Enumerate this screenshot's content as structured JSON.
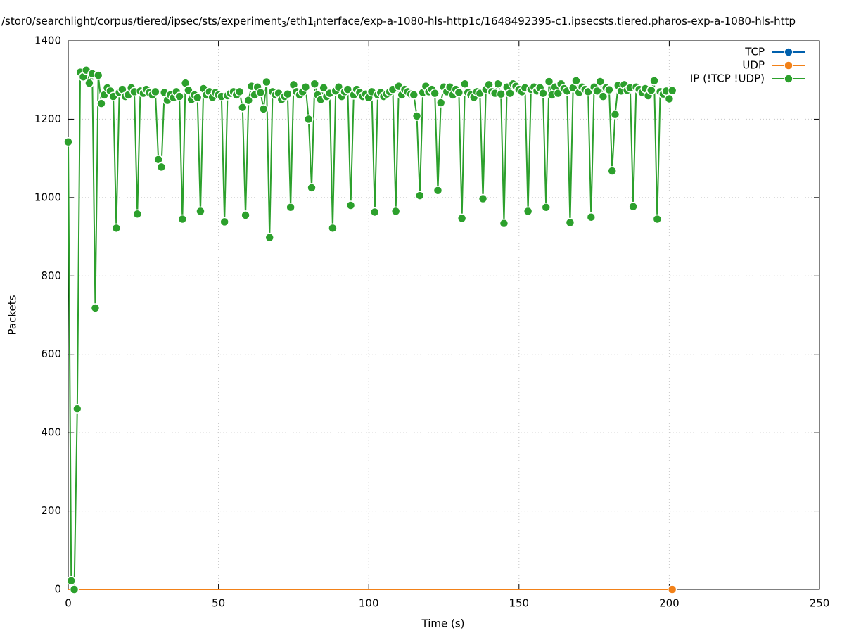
{
  "chart_data": {
    "type": "line",
    "title": [
      "/stor0/searchlight/corpus/tiered/ipsec/sts/experiment",
      "3",
      "/eth1",
      "i",
      "nterface/exp-a-1080-hls-http1c/1648492395-c1.ipsecsts.tiered.pharos-exp-a-1080-hls-http"
    ],
    "x_label": "Time (s)",
    "y_label": "Packets",
    "xlim": [
      0,
      250
    ],
    "xticks": [
      0,
      50,
      100,
      150,
      200,
      250
    ],
    "ylim": [
      0,
      1400
    ],
    "yticks": [
      0,
      200,
      400,
      600,
      800,
      1000,
      1200,
      1400
    ],
    "grid": true,
    "legend": "top-right",
    "x": [
      0,
      1,
      2,
      3,
      4,
      5,
      6,
      7,
      8,
      9,
      10,
      11,
      12,
      13,
      14,
      15,
      16,
      17,
      18,
      19,
      20,
      21,
      22,
      23,
      24,
      25,
      26,
      27,
      28,
      29,
      30,
      31,
      32,
      33,
      34,
      35,
      36,
      37,
      38,
      39,
      40,
      41,
      42,
      43,
      44,
      45,
      46,
      47,
      48,
      49,
      50,
      51,
      52,
      53,
      54,
      55,
      56,
      57,
      58,
      59,
      60,
      61,
      62,
      63,
      64,
      65,
      66,
      67,
      68,
      69,
      70,
      71,
      72,
      73,
      74,
      75,
      76,
      77,
      78,
      79,
      80,
      81,
      82,
      83,
      84,
      85,
      86,
      87,
      88,
      89,
      90,
      91,
      92,
      93,
      94,
      95,
      96,
      97,
      98,
      99,
      100,
      101,
      102,
      103,
      104,
      105,
      106,
      107,
      108,
      109,
      110,
      111,
      112,
      113,
      114,
      115,
      116,
      117,
      118,
      119,
      120,
      121,
      122,
      123,
      124,
      125,
      126,
      127,
      128,
      129,
      130,
      131,
      132,
      133,
      134,
      135,
      136,
      137,
      138,
      139,
      140,
      141,
      142,
      143,
      144,
      145,
      146,
      147,
      148,
      149,
      150,
      151,
      152,
      153,
      154,
      155,
      156,
      157,
      158,
      159,
      160,
      161,
      162,
      163,
      164,
      165,
      166,
      167,
      168,
      169,
      170,
      171,
      172,
      173,
      174,
      175,
      176,
      177,
      178,
      179,
      180,
      181,
      182,
      183,
      184,
      185,
      186,
      187,
      188,
      189,
      190,
      191,
      192,
      193,
      194,
      195,
      196,
      197,
      198,
      199,
      200,
      201
    ],
    "series": [
      {
        "name": "TCP",
        "color": "#0060ad",
        "values": [
          0,
          0,
          0,
          0,
          0,
          0,
          0,
          0,
          0,
          0,
          0,
          0,
          0,
          0,
          0,
          0,
          0,
          0,
          0,
          0,
          0,
          0,
          0,
          0,
          0,
          0,
          0,
          0,
          0,
          0,
          0,
          0,
          0,
          0,
          0,
          0,
          0,
          0,
          0,
          0,
          0,
          0,
          0,
          0,
          0,
          0,
          0,
          0,
          0,
          0,
          0,
          0,
          0,
          0,
          0,
          0,
          0,
          0,
          0,
          0,
          0,
          0,
          0,
          0,
          0,
          0,
          0,
          0,
          0,
          0,
          0,
          0,
          0,
          0,
          0,
          0,
          0,
          0,
          0,
          0,
          0,
          0,
          0,
          0,
          0,
          0,
          0,
          0,
          0,
          0,
          0,
          0,
          0,
          0,
          0,
          0,
          0,
          0,
          0,
          0,
          0,
          0,
          0,
          0,
          0,
          0,
          0,
          0,
          0,
          0,
          0,
          0,
          0,
          0,
          0,
          0,
          0,
          0,
          0,
          0,
          0,
          0,
          0,
          0,
          0,
          0,
          0,
          0,
          0,
          0,
          0,
          0,
          0,
          0,
          0,
          0,
          0,
          0,
          0,
          0,
          0,
          0,
          0,
          0,
          0,
          0,
          0,
          0,
          0,
          0,
          0,
          0,
          0,
          0,
          0,
          0,
          0,
          0,
          0,
          0,
          0,
          0,
          0,
          0,
          0,
          0,
          0,
          0,
          0,
          0,
          0,
          0,
          0,
          0,
          0,
          0,
          0,
          0,
          0,
          0,
          0,
          0,
          0,
          0,
          0,
          0,
          0,
          0,
          0,
          0,
          0,
          0,
          0,
          0,
          0,
          0,
          0,
          0,
          0,
          0,
          0,
          0
        ]
      },
      {
        "name": "UDP",
        "color": "#f28118",
        "values": [
          0,
          0,
          0,
          0,
          0,
          0,
          0,
          0,
          0,
          0,
          0,
          0,
          0,
          0,
          0,
          0,
          0,
          0,
          0,
          0,
          0,
          0,
          0,
          0,
          0,
          0,
          0,
          0,
          0,
          0,
          0,
          0,
          0,
          0,
          0,
          0,
          0,
          0,
          0,
          0,
          0,
          0,
          0,
          0,
          0,
          0,
          0,
          0,
          0,
          0,
          0,
          0,
          0,
          0,
          0,
          0,
          0,
          0,
          0,
          0,
          0,
          0,
          0,
          0,
          0,
          0,
          0,
          0,
          0,
          0,
          0,
          0,
          0,
          0,
          0,
          0,
          0,
          0,
          0,
          0,
          0,
          0,
          0,
          0,
          0,
          0,
          0,
          0,
          0,
          0,
          0,
          0,
          0,
          0,
          0,
          0,
          0,
          0,
          0,
          0,
          0,
          0,
          0,
          0,
          0,
          0,
          0,
          0,
          0,
          0,
          0,
          0,
          0,
          0,
          0,
          0,
          0,
          0,
          0,
          0,
          0,
          0,
          0,
          0,
          0,
          0,
          0,
          0,
          0,
          0,
          0,
          0,
          0,
          0,
          0,
          0,
          0,
          0,
          0,
          0,
          0,
          0,
          0,
          0,
          0,
          0,
          0,
          0,
          0,
          0,
          0,
          0,
          0,
          0,
          0,
          0,
          0,
          0,
          0,
          0,
          0,
          0,
          0,
          0,
          0,
          0,
          0,
          0,
          0,
          0,
          0,
          0,
          0,
          0,
          0,
          0,
          0,
          0,
          0,
          0,
          0,
          0,
          0,
          0,
          0,
          0,
          0,
          0,
          0,
          0,
          0,
          0,
          0,
          0,
          0,
          0,
          0,
          0,
          0,
          0,
          0,
          0
        ]
      },
      {
        "name": "IP (!TCP  !UDP)",
        "color": "#2ca02c",
        "values": [
          1142,
          22,
          0,
          461,
          1320,
          1308,
          1325,
          1292,
          1316,
          718,
          1312,
          1240,
          1262,
          1280,
          1272,
          1258,
          922,
          1268,
          1276,
          1258,
          1262,
          1280,
          1270,
          958,
          1272,
          1266,
          1276,
          1268,
          1262,
          1270,
          1097,
          1078,
          1268,
          1248,
          1262,
          1255,
          1270,
          1258,
          945,
          1292,
          1274,
          1250,
          1262,
          1255,
          965,
          1278,
          1262,
          1270,
          1256,
          1268,
          1262,
          1258,
          938,
          1260,
          1266,
          1270,
          1262,
          1270,
          1230,
          955,
          1248,
          1284,
          1262,
          1282,
          1268,
          1226,
          1295,
          898,
          1270,
          1262,
          1266,
          1250,
          1258,
          1264,
          975,
          1288,
          1270,
          1262,
          1270,
          1282,
          1200,
          1025,
          1290,
          1262,
          1250,
          1280,
          1258,
          1266,
          922,
          1272,
          1282,
          1258,
          1270,
          1276,
          980,
          1262,
          1276,
          1268,
          1258,
          1264,
          1255,
          1270,
          963,
          1262,
          1268,
          1258,
          1264,
          1270,
          1276,
          965,
          1284,
          1262,
          1276,
          1270,
          1264,
          1262,
          1208,
          1005,
          1268,
          1284,
          1270,
          1276,
          1266,
          1018,
          1242,
          1282,
          1270,
          1282,
          1262,
          1276,
          1268,
          947,
          1290,
          1268,
          1262,
          1256,
          1270,
          1266,
          997,
          1276,
          1288,
          1270,
          1266,
          1290,
          1264,
          934,
          1282,
          1266,
          1290,
          1284,
          1276,
          1270,
          1280,
          965,
          1276,
          1282,
          1272,
          1280,
          1266,
          975,
          1296,
          1262,
          1282,
          1266,
          1290,
          1278,
          1272,
          936,
          1280,
          1298,
          1268,
          1282,
          1276,
          1270,
          950,
          1282,
          1272,
          1296,
          1258,
          1280,
          1275,
          1068,
          1212,
          1286,
          1272,
          1288,
          1274,
          1280,
          977,
          1282,
          1276,
          1268,
          1278,
          1260,
          1274,
          1298,
          945,
          1270,
          1264,
          1272,
          1252,
          1273
        ]
      }
    ]
  }
}
